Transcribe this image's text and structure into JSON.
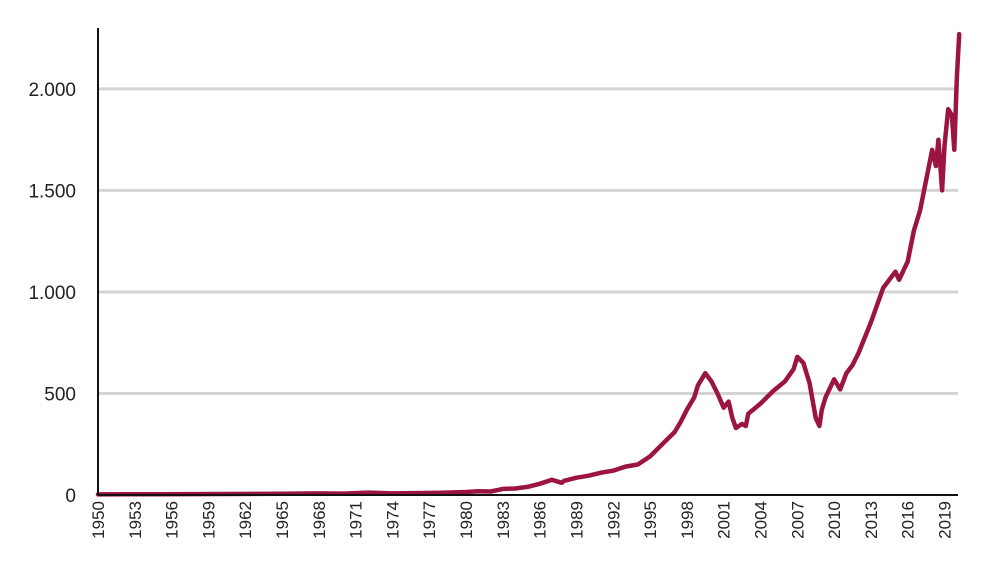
{
  "chart_data": {
    "type": "line",
    "title": "",
    "xlabel": "",
    "ylabel": "",
    "xlim": [
      1950,
      2020.1
    ],
    "ylim": [
      0,
      2300
    ],
    "grid": "horizontal",
    "legend": "none",
    "line_color": "#9b1540",
    "x_ticks": [
      "1950",
      "1953",
      "1956",
      "1959",
      "1962",
      "1965",
      "1968",
      "1971",
      "1974",
      "1977",
      "1980",
      "1983",
      "1986",
      "1989",
      "1992",
      "1995",
      "1998",
      "2001",
      "2004",
      "2007",
      "2010",
      "2013",
      "2016",
      "2019"
    ],
    "y_ticks": [
      {
        "value": 0,
        "label": "0"
      },
      {
        "value": 500,
        "label": "500"
      },
      {
        "value": 1000,
        "label": "1.000"
      },
      {
        "value": 1500,
        "label": "1.500"
      },
      {
        "value": 2000,
        "label": "2.000"
      }
    ],
    "series": [
      {
        "name": "",
        "x": [
          1950,
          1955,
          1960,
          1965,
          1968,
          1970,
          1972,
          1974,
          1975,
          1978,
          1980,
          1981,
          1982,
          1983,
          1984,
          1985,
          1986,
          1987,
          1987.8,
          1988,
          1989,
          1990,
          1991,
          1992,
          1993,
          1994,
          1995,
          1996,
          1997,
          1997.5,
          1998,
          1998.6,
          1998.9,
          1999.5,
          2000,
          2000.5,
          2001,
          2001.4,
          2001.7,
          2002,
          2002.5,
          2002.8,
          2003,
          2004,
          2005,
          2006,
          2006.7,
          2007,
          2007.5,
          2008,
          2008.5,
          2008.8,
          2009,
          2009.3,
          2010,
          2010.5,
          2011,
          2011.5,
          2012,
          2013,
          2014,
          2015,
          2015.3,
          2016,
          2016.5,
          2017,
          2017.5,
          2018,
          2018.3,
          2018.5,
          2018.8,
          2019,
          2019.3,
          2019.6,
          2019.8,
          2020,
          2020.2
        ],
        "values": [
          3,
          4,
          5,
          6,
          8,
          7,
          12,
          8,
          9,
          11,
          15,
          18,
          17,
          30,
          32,
          40,
          55,
          75,
          60,
          70,
          85,
          95,
          110,
          120,
          140,
          150,
          190,
          250,
          310,
          360,
          420,
          480,
          540,
          600,
          560,
          500,
          430,
          460,
          380,
          330,
          350,
          340,
          400,
          450,
          510,
          560,
          620,
          680,
          650,
          550,
          380,
          340,
          420,
          480,
          570,
          520,
          600,
          640,
          700,
          850,
          1020,
          1100,
          1060,
          1150,
          1300,
          1400,
          1550,
          1700,
          1620,
          1750,
          1500,
          1720,
          1900,
          1870,
          1700,
          2050,
          2270
        ]
      }
    ]
  }
}
